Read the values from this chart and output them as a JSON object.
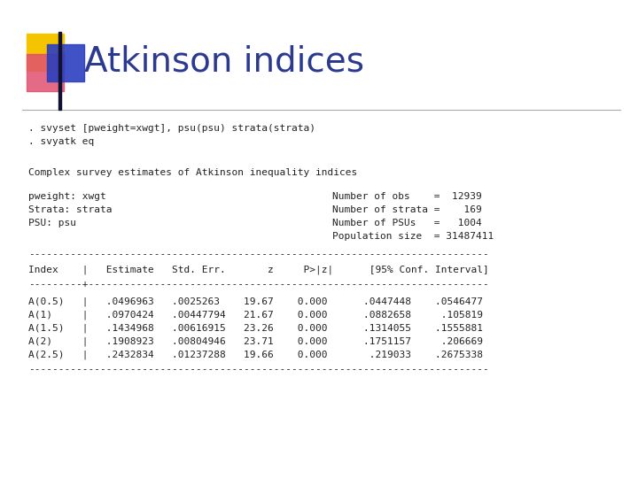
{
  "title": "Atkinson indices",
  "title_color": "#2B3990",
  "title_fontsize": 28,
  "background_color": "#FFFFFF",
  "commands": [
    ". svyset [pweight=xwgt], psu(psu) strata(strata)",
    ". svyatk eq"
  ],
  "section_header": "Complex survey estimates of Atkinson inequality indices",
  "left_labels": [
    "pweight: xwgt",
    "Strata: strata",
    "PSU: psu"
  ],
  "right_labels": [
    "Number of obs    =  12939",
    "Number of strata =    169",
    "Number of PSUs   =   1004",
    "Population size  = 31487411"
  ],
  "table_header": "Index    |   Estimate   Std. Err.       z     P>|z|      [95% Conf. Interval]",
  "separator_long": "-----------------------------------------------------------------------------",
  "separator_short": "---------+-------------------------------------------------------------------",
  "rows": [
    "A(0.5)   |   .0496963   .0025263    19.67    0.000      .0447448    .0546477",
    "A(1)     |   .0970424   .00447794   21.67    0.000      .0882658     .105819",
    "A(1.5)   |   .1434968   .00616915   23.26    0.000      .1314055    .1555881",
    "A(2)     |   .1908923   .00804946   23.71    0.000      .1751157     .206669",
    "A(2.5)   |   .2432834   .01237288   19.66    0.000       .219033    .2675338"
  ],
  "mono_fontsize": 8.0,
  "accent_colors": {
    "yellow": "#F5C400",
    "red": "#E05070",
    "blue": "#2B3FBF"
  }
}
